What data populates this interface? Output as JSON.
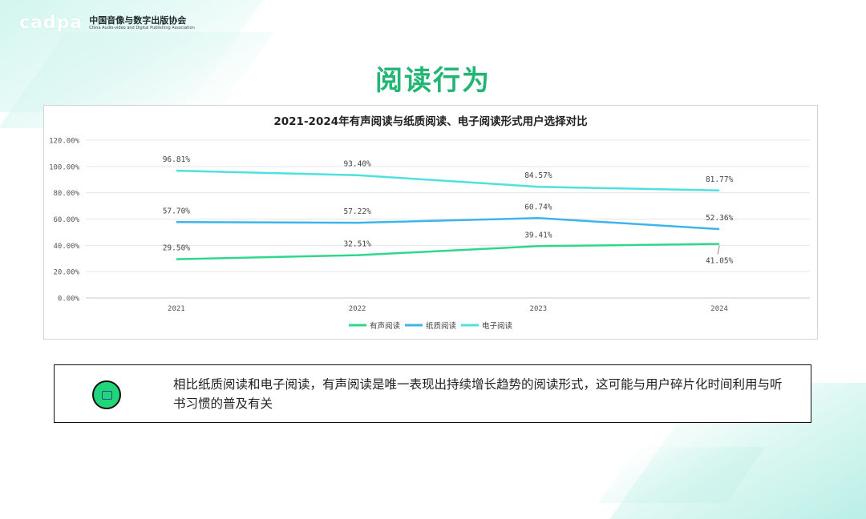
{
  "brand": {
    "logo_word": "cadpa",
    "name_cn": "中国音像与数字出版协会",
    "name_en": "China Audio-video and Digital Publishing Association"
  },
  "page": {
    "title": "阅读行为"
  },
  "note": {
    "text": "相比纸质阅读和电子阅读，有声阅读是唯一表现出持续增长趋势的阅读形式，这可能与用户碎片化时间利用与听书习惯的普及有关"
  },
  "colors": {
    "accent": "#22b573"
  },
  "chart_data": {
    "type": "line",
    "title": "2021-2024年有声阅读与纸质阅读、电子阅读形式用户选择对比",
    "x": [
      "2021",
      "2022",
      "2023",
      "2024"
    ],
    "ylim": [
      0,
      120
    ],
    "yticks": [
      "0.00%",
      "20.00%",
      "40.00%",
      "60.00%",
      "80.00%",
      "100.00%",
      "120.00%"
    ],
    "grid": true,
    "legend": "bottom",
    "series": [
      {
        "name": "有声阅读",
        "color": "#2ed88a",
        "values": [
          29.5,
          32.51,
          39.41,
          41.05
        ],
        "labels": [
          "29.50%",
          "32.51%",
          "39.41%",
          "41.05%"
        ]
      },
      {
        "name": "纸质阅读",
        "color": "#3cb4ec",
        "values": [
          57.7,
          57.22,
          60.74,
          52.36
        ],
        "labels": [
          "57.70%",
          "57.22%",
          "60.74%",
          "52.36%"
        ]
      },
      {
        "name": "电子阅读",
        "color": "#4fe0e0",
        "values": [
          96.81,
          93.4,
          84.57,
          81.77
        ],
        "labels": [
          "96.81%",
          "93.40%",
          "84.57%",
          "81.77%"
        ]
      }
    ]
  }
}
